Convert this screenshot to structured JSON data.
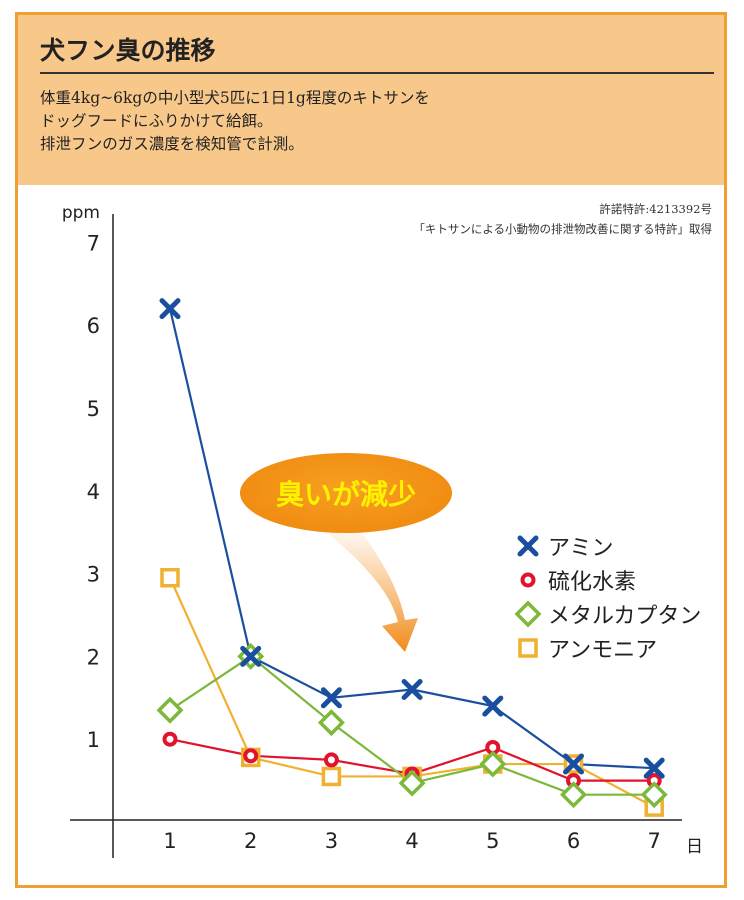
{
  "header": {
    "title": "犬フン臭の推移",
    "description": [
      "体重4kg~6kgの中小型犬5匹に1日1g程度のキトサンを",
      "ドッグフードにふりかけて給餌。",
      "排泄フンのガス濃度を検知管で計測。"
    ]
  },
  "patent": {
    "number": "許諾特許:4213392号",
    "title": "「キトサンによる小動物の排泄物改善に関する特許」取得"
  },
  "callout": "臭いが減少",
  "chart_data": {
    "type": "line",
    "title": "犬フン臭の推移",
    "ylabel": "ppm",
    "xlabel": "日",
    "x": [
      1,
      2,
      3,
      4,
      5,
      6,
      7
    ],
    "x_tick_labels": [
      "1",
      "2",
      "3",
      "4",
      "5",
      "6",
      "7"
    ],
    "y_tick_labels": [
      "1",
      "2",
      "3",
      "4",
      "5",
      "6",
      "7"
    ],
    "ylim": [
      0,
      7
    ],
    "grid": false,
    "legend_position": "right",
    "series": [
      {
        "name": "アミン",
        "marker": "x",
        "color": "#1a4fa0",
        "values": [
          6.2,
          2.0,
          1.5,
          1.6,
          1.4,
          0.7,
          0.65
        ]
      },
      {
        "name": "硫化水素",
        "marker": "circle",
        "color": "#e0142c",
        "values": [
          1.0,
          0.8,
          0.75,
          0.58,
          0.9,
          0.5,
          0.5
        ]
      },
      {
        "name": "メタルカプタン",
        "marker": "diamond",
        "color": "#7cb83a",
        "values": [
          1.35,
          2.0,
          1.2,
          0.47,
          0.7,
          0.33,
          0.33
        ]
      },
      {
        "name": "アンモニア",
        "marker": "square",
        "color": "#f0b030",
        "values": [
          2.95,
          0.78,
          0.55,
          0.55,
          0.7,
          0.7,
          0.18
        ]
      }
    ]
  }
}
